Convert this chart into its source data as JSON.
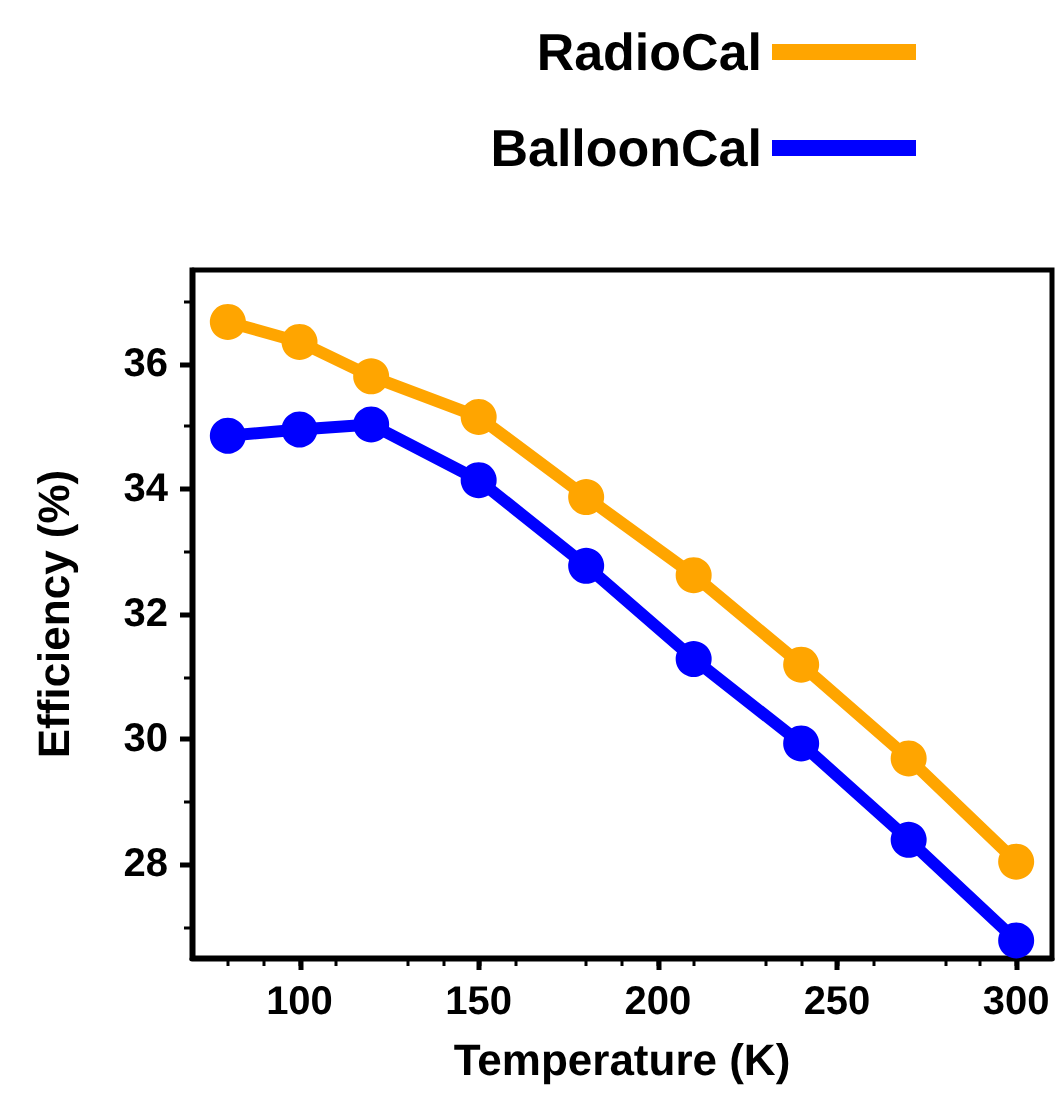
{
  "chart_data": {
    "type": "line",
    "xlabel": "Temperature (K)",
    "ylabel": "Efficiency (%)",
    "x": [
      80,
      100,
      120,
      150,
      180,
      210,
      240,
      270,
      300
    ],
    "series": [
      {
        "name": "RadioCal",
        "color": "#ffa500",
        "values": [
          36.67,
          36.35,
          35.8,
          35.15,
          33.87,
          32.62,
          31.19,
          29.69,
          28.04
        ]
      },
      {
        "name": "BalloonCal",
        "color": "#0000ff",
        "values": [
          34.85,
          34.95,
          35.03,
          34.14,
          32.77,
          31.28,
          29.93,
          28.39,
          26.78
        ]
      }
    ],
    "xlim": [
      70,
      310
    ],
    "xticks": [
      100,
      150,
      200,
      250,
      300
    ],
    "ylim": [
      26.5,
      37.5
    ],
    "yticks": [
      28,
      30,
      32,
      34,
      36
    ],
    "legend": "top right",
    "marker": "circle",
    "line_style": "solid"
  }
}
